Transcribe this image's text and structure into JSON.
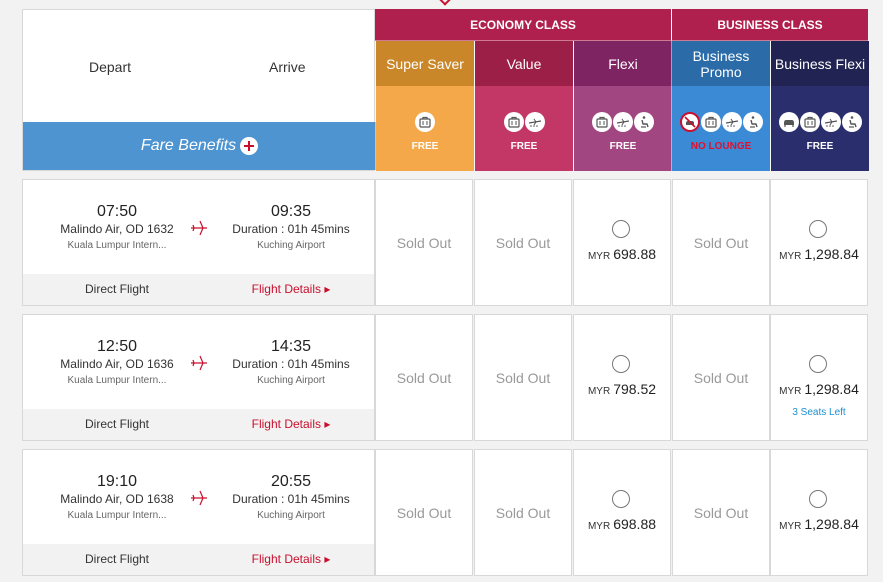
{
  "colors": {
    "super_saver": "#f5a84a",
    "super_saver_top": "#c9872a",
    "value": "#c23765",
    "value_top": "#9c1f47",
    "flexi": "#a14680",
    "flexi_top": "#7e2462",
    "business_promo": "#3b8ad6",
    "business_promo_top": "#2a6ba8",
    "business_flexi": "#2a2e6c",
    "business_flexi_top": "#212452",
    "class_header": "#b0204e",
    "benefits_bar": "#4d94d1",
    "accent_red": "#c8102e"
  },
  "header": {
    "depart": "Depart",
    "arrive": "Arrive",
    "fare_benefits": "Fare Benefits",
    "economy": "ECONOMY CLASS",
    "business": "BUSINESS CLASS"
  },
  "fares": [
    {
      "name": "Super Saver",
      "label": "FREE",
      "icons": [
        "baggage-icon"
      ]
    },
    {
      "name": "Value",
      "label": "FREE",
      "icons": [
        "baggage-icon",
        "plane-change-icon"
      ]
    },
    {
      "name": "Flexi",
      "label": "FREE",
      "icons": [
        "baggage-icon",
        "plane-change-icon",
        "seat-icon"
      ]
    },
    {
      "name": "Business Promo",
      "label": "NO LOUNGE",
      "icons": [
        "no-lounge-icon",
        "baggage-icon",
        "plane-change-icon",
        "seat-icon"
      ]
    },
    {
      "name": "Business Flexi",
      "label": "FREE",
      "icons": [
        "lounge-icon",
        "baggage-icon",
        "plane-change-icon",
        "seat-icon"
      ]
    }
  ],
  "flights": [
    {
      "depart_time": "07:50",
      "arrive_time": "09:35",
      "flight": "Malindo Air, OD 1632",
      "duration": "Duration : 01h 45mins",
      "from": "Kuala Lumpur Intern...",
      "to": "Kuching Airport",
      "type": "Direct Flight",
      "details": "Flight Details",
      "fares": [
        {
          "status": "Sold Out"
        },
        {
          "status": "Sold Out"
        },
        {
          "currency": "MYR",
          "price": "698.88"
        },
        {
          "status": "Sold Out"
        },
        {
          "currency": "MYR",
          "price": "1,298.84"
        }
      ]
    },
    {
      "depart_time": "12:50",
      "arrive_time": "14:35",
      "flight": "Malindo Air, OD 1636",
      "duration": "Duration : 01h 45mins",
      "from": "Kuala Lumpur Intern...",
      "to": "Kuching Airport",
      "type": "Direct Flight",
      "details": "Flight Details",
      "fares": [
        {
          "status": "Sold Out"
        },
        {
          "status": "Sold Out"
        },
        {
          "currency": "MYR",
          "price": "798.52"
        },
        {
          "status": "Sold Out"
        },
        {
          "currency": "MYR",
          "price": "1,298.84",
          "note": "3 Seats Left"
        }
      ]
    },
    {
      "depart_time": "19:10",
      "arrive_time": "20:55",
      "flight": "Malindo Air, OD 1638",
      "duration": "Duration : 01h 45mins",
      "from": "Kuala Lumpur Intern...",
      "to": "Kuching Airport",
      "type": "Direct Flight",
      "details": "Flight Details",
      "fares": [
        {
          "status": "Sold Out"
        },
        {
          "status": "Sold Out"
        },
        {
          "currency": "MYR",
          "price": "698.88"
        },
        {
          "status": "Sold Out"
        },
        {
          "currency": "MYR",
          "price": "1,298.84"
        }
      ]
    }
  ]
}
